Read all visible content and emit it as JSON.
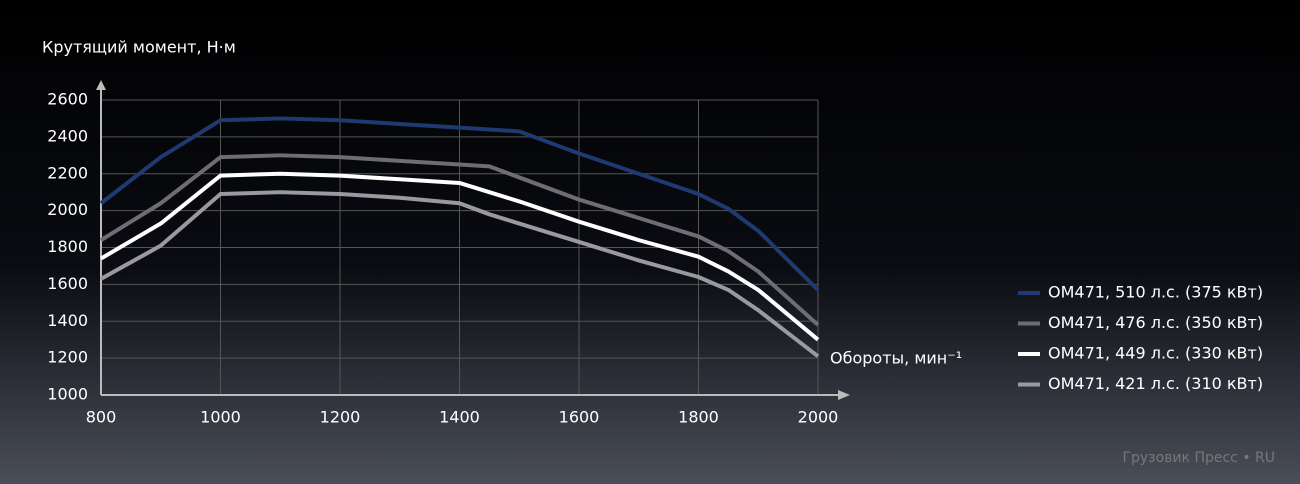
{
  "chart_data": {
    "type": "line",
    "y_label": "Крутящий момент, Н·м",
    "x_label": "Обороты, мин⁻¹",
    "watermark": "Грузовик Пресс • RU",
    "x": [
      800,
      900,
      1000,
      1100,
      1200,
      1300,
      1400,
      1450,
      1500,
      1600,
      1700,
      1800,
      1850,
      1900,
      2000
    ],
    "series": [
      {
        "name": "OM471, 510 л.с. (375 кВт)",
        "color": "#1e3a70",
        "values": [
          2040,
          2290,
          2490,
          2500,
          2490,
          2470,
          2450,
          2440,
          2430,
          2310,
          2200,
          2090,
          2010,
          1890,
          1570
        ]
      },
      {
        "name": "OM471, 476 л.с. (350 кВт)",
        "color": "#6e6e72",
        "values": [
          1840,
          2040,
          2290,
          2300,
          2290,
          2270,
          2250,
          2240,
          2180,
          2060,
          1960,
          1860,
          1780,
          1670,
          1380
        ]
      },
      {
        "name": "OM471, 449 л.с. (330 кВт)",
        "color": "#ffffff",
        "values": [
          1740,
          1930,
          2190,
          2200,
          2190,
          2170,
          2150,
          2100,
          2050,
          1940,
          1840,
          1750,
          1670,
          1570,
          1300
        ]
      },
      {
        "name": "OM471, 421 л.с. (310 кВт)",
        "color": "#9a9a9e",
        "values": [
          1630,
          1810,
          2090,
          2100,
          2090,
          2070,
          2040,
          1980,
          1930,
          1830,
          1730,
          1640,
          1570,
          1460,
          1210
        ]
      }
    ],
    "xlim": [
      800,
      2000
    ],
    "xticks": [
      800,
      1000,
      1200,
      1400,
      1600,
      1800,
      2000
    ],
    "ylim": [
      1000,
      2600
    ],
    "yticks": [
      1000,
      1200,
      1400,
      1600,
      1800,
      2000,
      2200,
      2400,
      2600
    ],
    "grid": true
  }
}
